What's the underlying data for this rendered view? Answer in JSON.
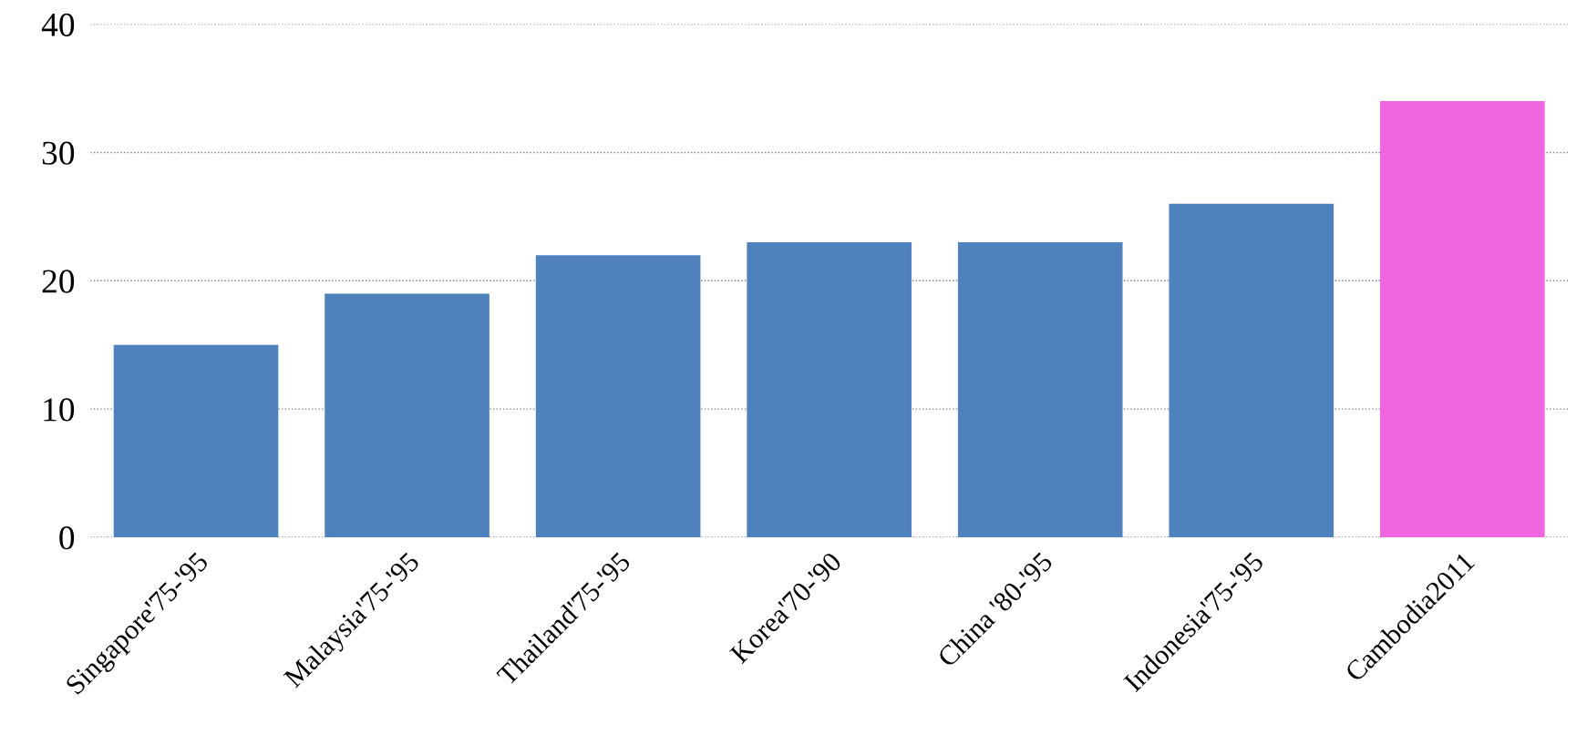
{
  "chart_data": {
    "type": "bar",
    "categories": [
      "Singapore'75-'95",
      "Malaysia'75-'95",
      "Thailand'75-'95",
      "Korea'70-'90",
      "China '80-'95",
      "Indonesia'75-'95",
      "Cambodia2011"
    ],
    "values": [
      15,
      19,
      22,
      23,
      23,
      26,
      34
    ],
    "colors": [
      "#4f81bd",
      "#4f81bd",
      "#4f81bd",
      "#4f81bd",
      "#4f81bd",
      "#4f81bd",
      "#f066de"
    ],
    "ylim": [
      0,
      40
    ],
    "yticks": [
      0,
      10,
      20,
      30,
      40
    ],
    "grid": "y"
  }
}
